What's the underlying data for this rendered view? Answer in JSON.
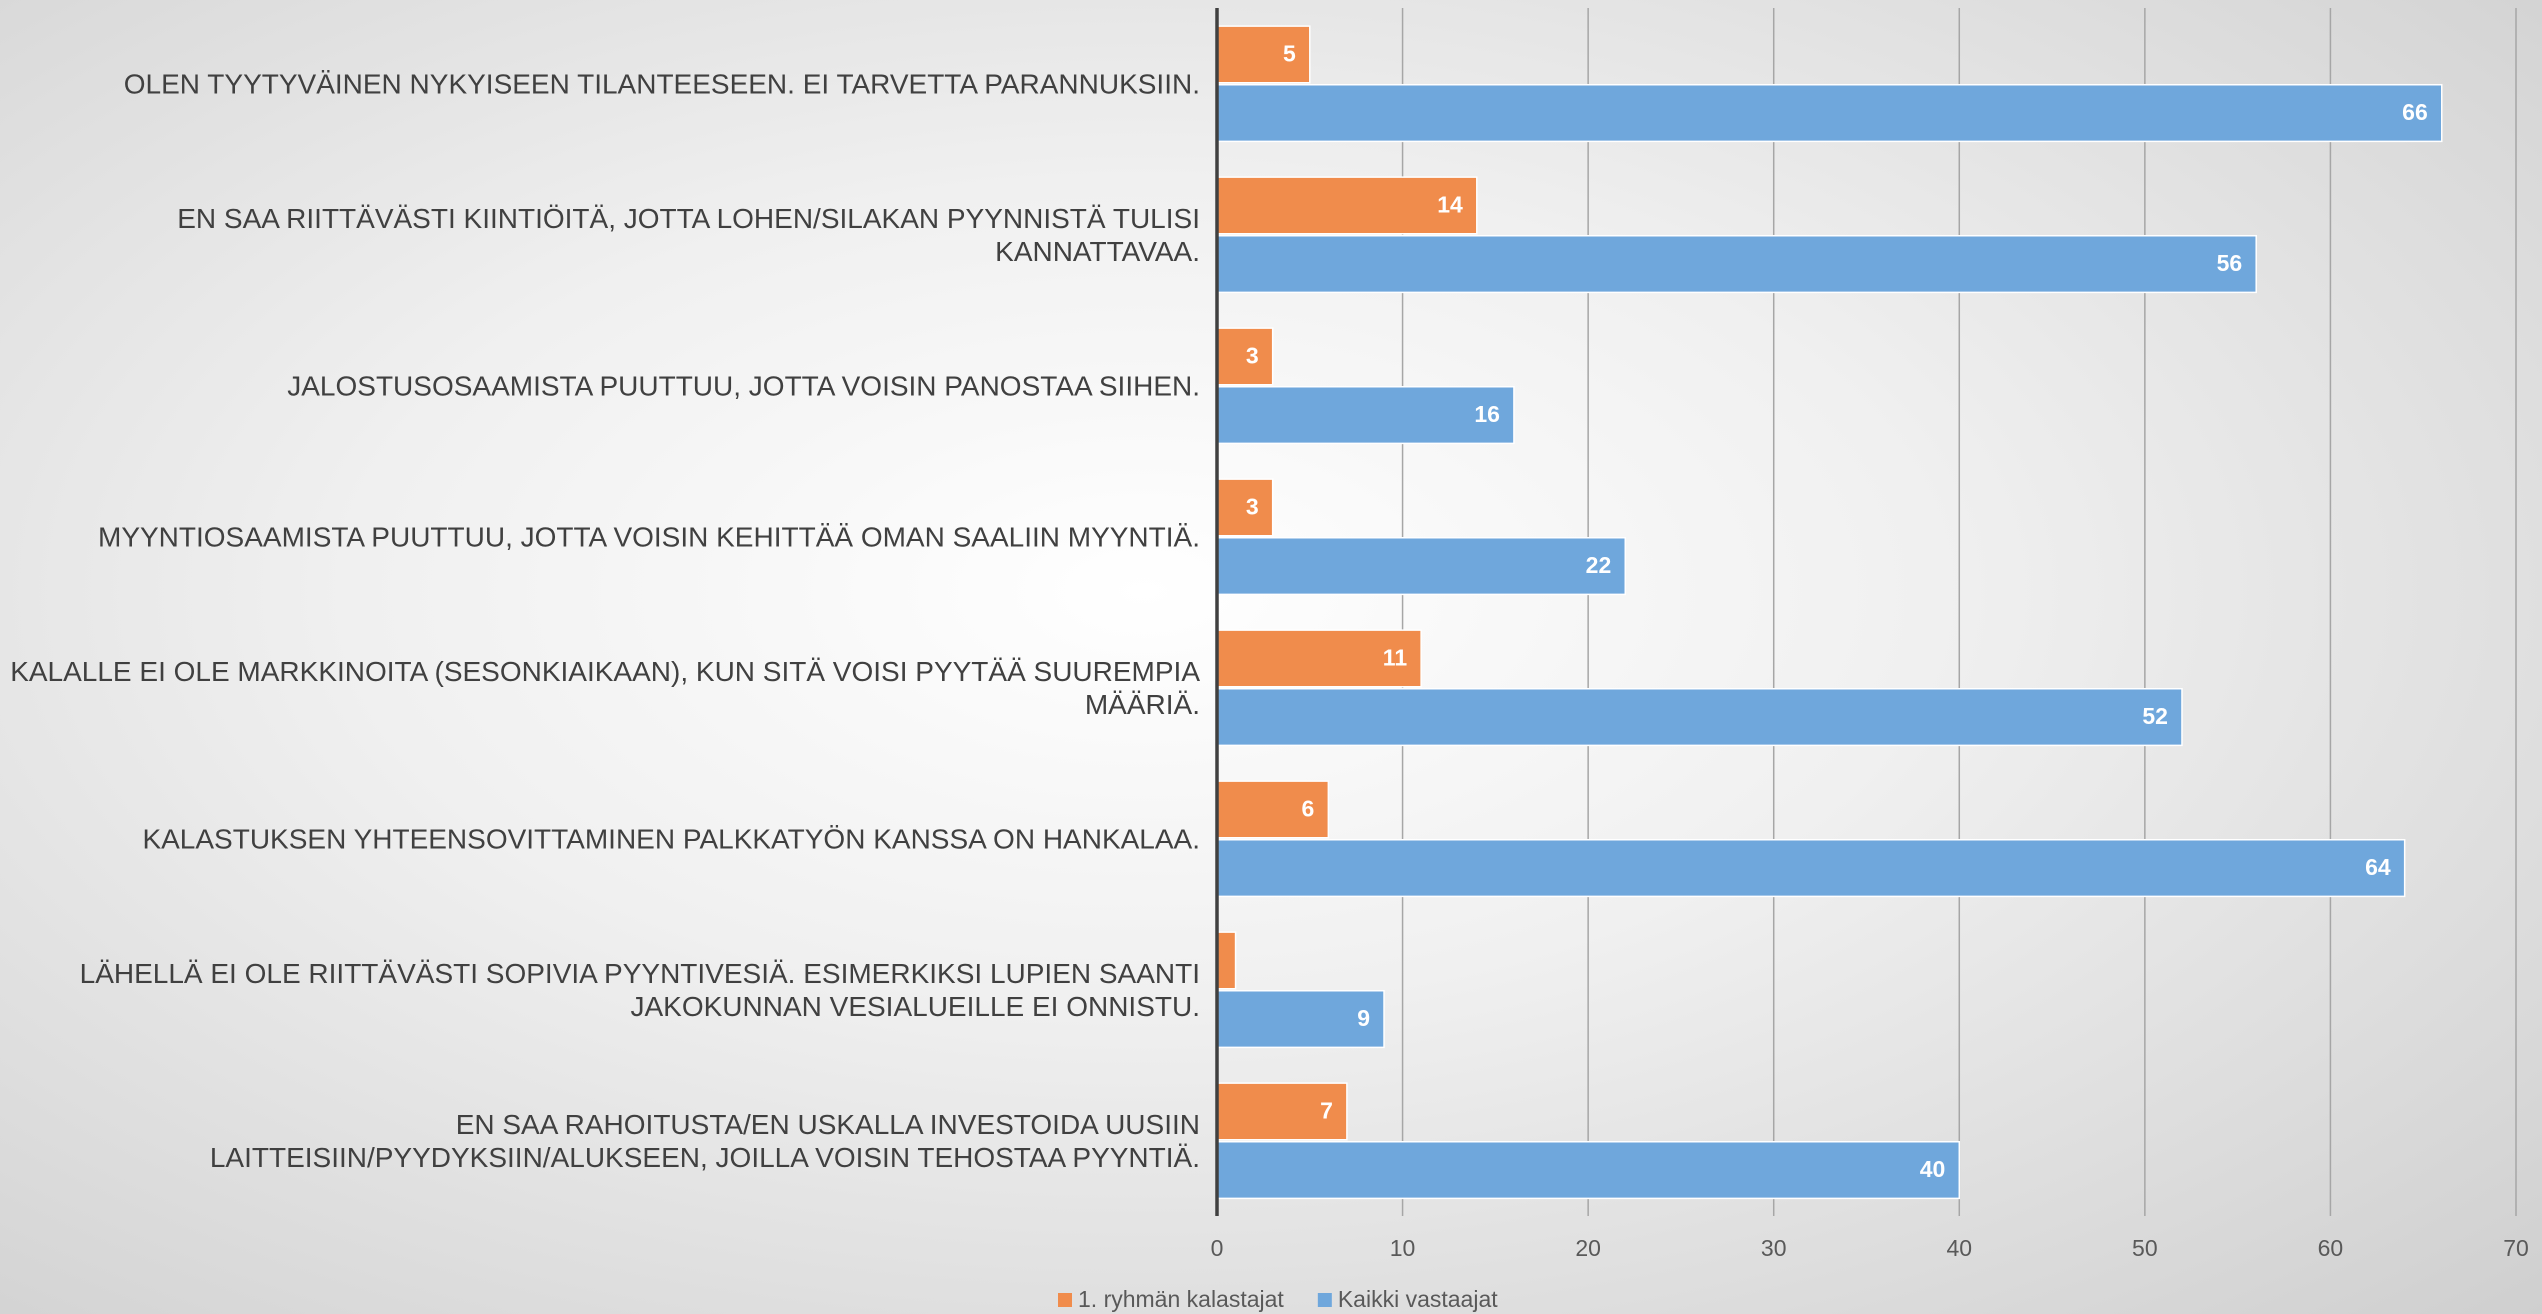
{
  "chart_data": {
    "type": "bar",
    "orientation": "horizontal",
    "categories": [
      "OLEN TYYTYVÄINEN NYKYISEEN TILANTEESEEN. EI TARVETTA PARANNUKSIIN.",
      "EN SAA RIITTÄVÄSTI KIINTIÖITÄ, JOTTA LOHEN/SILAKAN PYYNNISTÄ TULISI KANNATTAVAA.",
      "JALOSTUSOSAAMISTA PUUTTUU, JOTTA VOISIN PANOSTAA SIIHEN.",
      "MYYNTIOSAAMISTA PUUTTUU, JOTTA VOISIN KEHITTÄÄ OMAN SAALIIN MYYNTIÄ.",
      "KALALLE EI OLE MARKKINOITA (SESONKIAIKAAN), KUN SITÄ VOISI PYYTÄÄ SUUREMPIA MÄÄRIÄ.",
      "KALASTUKSEN YHTEENSOVITTAMINEN PALKKATYÖN KANSSA ON HANKALAA.",
      "LÄHELLÄ EI OLE RIITTÄVÄSTI SOPIVIA PYYNTIVESIÄ. ESIMERKIKSI LUPIEN SAANTI JAKOKUNNAN VESIALUEILLE EI ONNISTU.",
      "EN SAA RAHOITUSTA/EN USKALLA INVESTOIDA UUSIIN LAITTEISIIN/PYYDYKSIIN/ALUKSEEN, JOILLA VOISIN TEHOSTAA PYYNTIÄ."
    ],
    "series": [
      {
        "name": "1. ryhmän kalastajat",
        "color": "#f08c4c",
        "values": [
          5,
          14,
          3,
          3,
          11,
          6,
          1,
          7
        ],
        "value_labels": [
          "5",
          "14",
          "3",
          "3",
          "11",
          "6",
          null,
          "7"
        ]
      },
      {
        "name": "Kaikki vastaajat",
        "color": "#6fa7dc",
        "values": [
          66,
          56,
          16,
          22,
          52,
          64,
          9,
          40
        ],
        "value_labels": [
          "66",
          "56",
          "16",
          "22",
          "52",
          "64",
          "9",
          "40"
        ]
      }
    ],
    "xlim": [
      0,
      70
    ],
    "xticks": [
      0,
      10,
      20,
      30,
      40,
      50,
      60,
      70
    ],
    "grid": true,
    "legend": "bottom"
  }
}
